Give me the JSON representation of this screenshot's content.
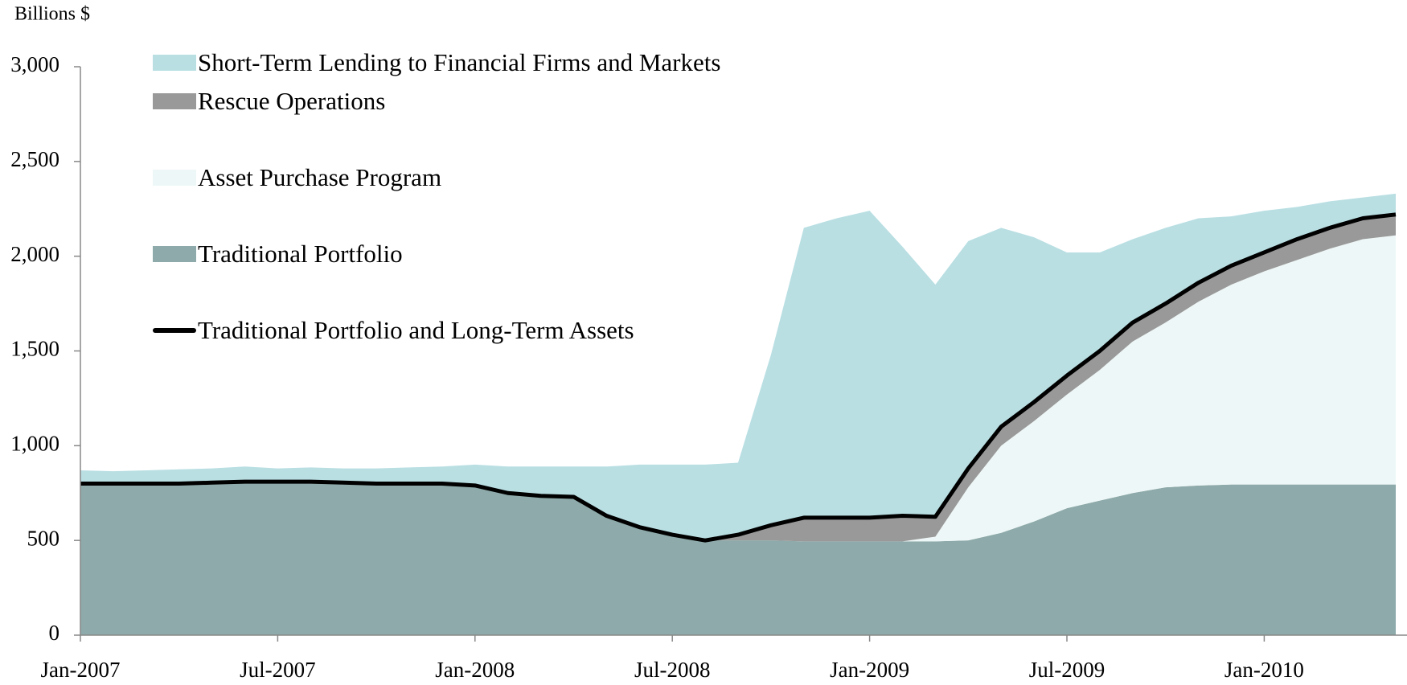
{
  "chart_data": {
    "type": "stacked_area",
    "y_axis_label": "Billions $",
    "categories": [
      "Jan-2007",
      null,
      null,
      null,
      null,
      null,
      "Jul-2007",
      null,
      null,
      null,
      null,
      null,
      "Jan-2008",
      null,
      null,
      null,
      null,
      null,
      "Jul-2008",
      null,
      null,
      null,
      null,
      null,
      "Jan-2009",
      null,
      null,
      null,
      null,
      null,
      "Jul-2009",
      null,
      null,
      null,
      null,
      null,
      "Jan-2010",
      null,
      null,
      null,
      null
    ],
    "series": [
      {
        "name": "Short-Term Lending to Financial Firms and Markets",
        "color": "#b9dfe3",
        "kind": "area",
        "values": [
          70,
          65,
          70,
          75,
          75,
          80,
          70,
          75,
          75,
          80,
          85,
          90,
          110,
          140,
          155,
          160,
          260,
          330,
          370,
          400,
          380,
          900,
          1530,
          1580,
          1620,
          1420,
          1225,
          1200,
          1050,
          870,
          650,
          520,
          440,
          400,
          340,
          260,
          220,
          170,
          140,
          110,
          110
        ]
      },
      {
        "name": "Rescue Operations",
        "color": "#999999",
        "kind": "area",
        "values": [
          0,
          0,
          0,
          0,
          0,
          0,
          0,
          0,
          0,
          0,
          0,
          0,
          0,
          0,
          0,
          0,
          0,
          0,
          0,
          0,
          30,
          80,
          125,
          125,
          125,
          135,
          105,
          100,
          100,
          100,
          100,
          100,
          100,
          100,
          100,
          100,
          100,
          110,
          110,
          110,
          110
        ]
      },
      {
        "name": "Asset Purchase Program",
        "color": "#eef7f7",
        "kind": "area",
        "values": [
          0,
          0,
          0,
          0,
          0,
          0,
          0,
          0,
          0,
          0,
          0,
          0,
          0,
          0,
          0,
          0,
          0,
          0,
          0,
          0,
          0,
          0,
          0,
          0,
          0,
          0,
          25,
          280,
          460,
          530,
          600,
          690,
          800,
          870,
          970,
          1055,
          1125,
          1185,
          1245,
          1295,
          1315
        ]
      },
      {
        "name": "Traditional Portfolio",
        "color": "#8eaaaa",
        "kind": "area",
        "values": [
          800,
          800,
          800,
          800,
          805,
          810,
          810,
          810,
          805,
          800,
          800,
          800,
          790,
          750,
          735,
          730,
          630,
          570,
          530,
          500,
          500,
          500,
          495,
          495,
          495,
          495,
          495,
          500,
          540,
          600,
          670,
          710,
          750,
          780,
          790,
          795,
          795,
          795,
          795,
          795,
          795
        ]
      },
      {
        "name": "Traditional Portfolio and Long-Term Assets",
        "color": "#000000",
        "kind": "line",
        "values": [
          800,
          800,
          800,
          800,
          805,
          810,
          810,
          810,
          805,
          800,
          800,
          800,
          790,
          750,
          735,
          730,
          630,
          570,
          530,
          500,
          530,
          580,
          620,
          620,
          620,
          630,
          625,
          880,
          1100,
          1230,
          1370,
          1500,
          1650,
          1750,
          1860,
          1950,
          2020,
          2090,
          2150,
          2200,
          2220
        ]
      }
    ],
    "ylim": [
      0,
      3000
    ],
    "yticks": [
      0,
      500,
      {
        "value": 1000,
        "label": "1,000"
      },
      {
        "value": 1500,
        "label": "1,500"
      },
      {
        "value": 2000,
        "label": "2,000"
      },
      {
        "value": 2500,
        "label": "2,500"
      },
      {
        "value": 3000,
        "label": "3,000"
      }
    ]
  }
}
